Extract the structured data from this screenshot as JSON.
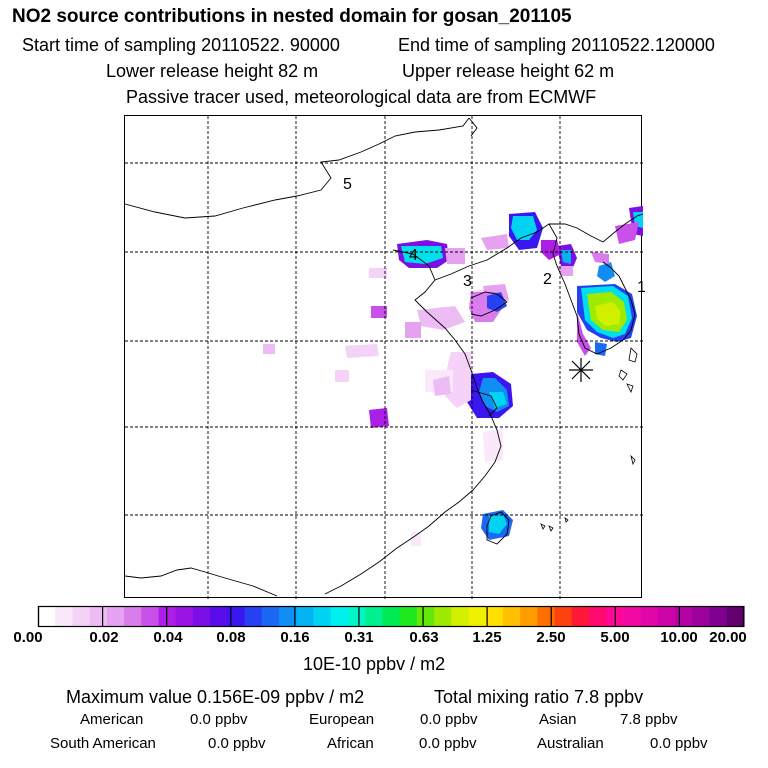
{
  "header": {
    "title": "NO2 source contributions in nested domain for gosan_201105",
    "start_time": "Start time of sampling 20110522. 90000",
    "end_time": "End time of sampling 20110522.120000",
    "lower_release": "Lower release height   82 m",
    "upper_release": "Upper release height   62 m",
    "tracer_note": "Passive tracer used, meteorological data are from ECMWF"
  },
  "map": {
    "region_labels": [
      "5",
      "4",
      "3",
      "2",
      "1"
    ],
    "receptor_marker": "gosan-station"
  },
  "colorbar": {
    "colors": [
      "#ffffff",
      "#fbe8fb",
      "#f5d2f7",
      "#eebcf4",
      "#e6a2f0",
      "#d97cec",
      "#c951e9",
      "#ad1fe6",
      "#9a14e4",
      "#7c0fe6",
      "#5b0cec",
      "#3a17f1",
      "#2641f2",
      "#1b68f4",
      "#108ef4",
      "#05b3f3",
      "#00d4f2",
      "#00f0f0",
      "#00f5c8",
      "#00f090",
      "#00ea55",
      "#1fe81e",
      "#63e80b",
      "#a0ea00",
      "#d0f000",
      "#f0f000",
      "#ffe000",
      "#ffc000",
      "#ff9c00",
      "#ff6f00",
      "#ff4010",
      "#ff1838",
      "#ff0a70",
      "#ff0898",
      "#f208a2",
      "#e006a8",
      "#cc04a8",
      "#b503a4",
      "#9c029d",
      "#800090",
      "#620070"
    ],
    "tick_labels": [
      "0.00",
      "0.02",
      "0.04",
      "0.08",
      "0.16",
      "0.31",
      "0.63",
      "1.25",
      "2.50",
      "5.00",
      "10.00",
      "20.00"
    ],
    "units": "10E-10 ppbv / m2"
  },
  "summary": {
    "max_value": "Maximum value  0.156E-09 ppbv / m2",
    "total_mixing": "Total mixing ratio       7.8 ppbv",
    "sources": [
      {
        "label": "American",
        "value": "0.0 ppbv"
      },
      {
        "label": "European",
        "value": "0.0 ppbv"
      },
      {
        "label": "Asian",
        "value": "7.8 ppbv"
      },
      {
        "label": "South American",
        "value": "0.0 ppbv"
      },
      {
        "label": "African",
        "value": "0.0 ppbv"
      },
      {
        "label": "Australian",
        "value": "0.0 ppbv"
      }
    ]
  }
}
